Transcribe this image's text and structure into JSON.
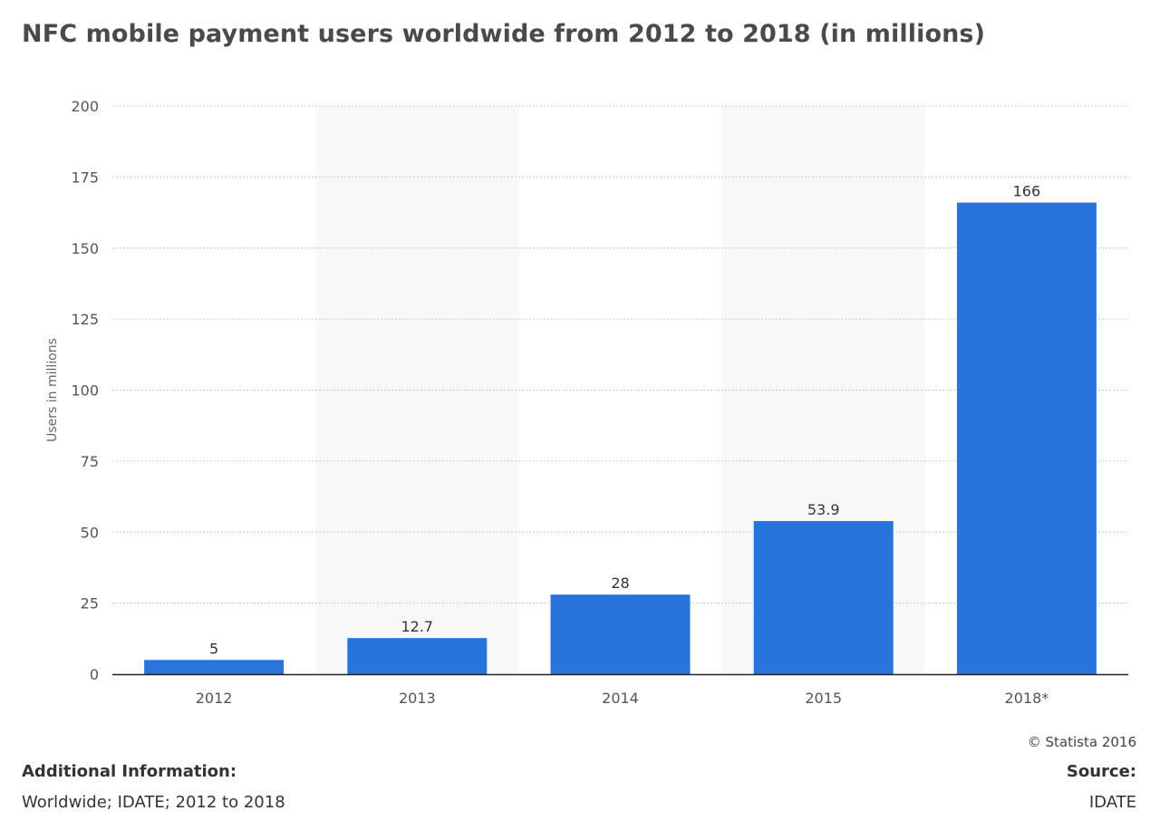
{
  "title": "NFC mobile payment users worldwide from 2012 to 2018 (in millions)",
  "chart_data": {
    "type": "bar",
    "categories": [
      "2012",
      "2013",
      "2014",
      "2015",
      "2018*"
    ],
    "values": [
      5,
      12.7,
      28,
      53.9,
      166
    ],
    "value_labels": [
      "5",
      "12.7",
      "28",
      "53.9",
      "166"
    ],
    "title": "NFC mobile payment users worldwide from 2012 to 2018 (in millions)",
    "xlabel": "",
    "ylabel": "Users in millions",
    "ylim": [
      0,
      200
    ],
    "yticks": [
      0,
      25,
      50,
      75,
      100,
      125,
      150,
      175,
      200
    ],
    "grid": true,
    "bar_color": "#2774dc",
    "band_color": "#f8f8f8",
    "grid_color": "#c8c8c8",
    "axis_color": "#222222"
  },
  "footer": {
    "copyright": "© Statista 2016",
    "additional_info_label": "Additional Information:",
    "additional_info_text": "Worldwide; IDATE; 2012 to 2018",
    "source_label": "Source:",
    "source_text": "IDATE"
  }
}
